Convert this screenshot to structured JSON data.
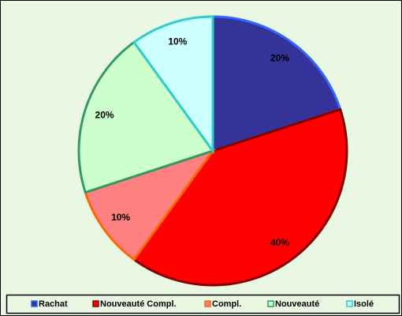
{
  "chart_data": {
    "type": "pie",
    "categories": [
      "Rachat",
      "Nouveauté Compl.",
      "Compl.",
      "Nouveauté",
      "Isolé"
    ],
    "values": [
      20,
      40,
      10,
      20,
      10
    ],
    "value_labels": [
      "20%",
      "40%",
      "10%",
      "20%",
      "10%"
    ],
    "colors": [
      "#333399",
      "#FF0000",
      "#FF8080",
      "#CCFFCC",
      "#CCFFFF"
    ],
    "edge_colors": [
      "#3366FF",
      "#800000",
      "#FF6600",
      "#339966",
      "#33CCCC"
    ],
    "legend": "bottom"
  }
}
